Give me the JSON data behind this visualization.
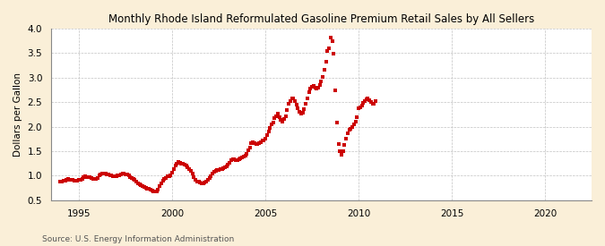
{
  "title": "Monthly Rhode Island Reformulated Gasoline Premium Retail Sales by All Sellers",
  "ylabel": "Dollars per Gallon",
  "source": "Source: U.S. Energy Information Administration",
  "background_color": "#faefd8",
  "plot_bg_color": "#ffffff",
  "line_color": "#cc0000",
  "marker": "s",
  "markersize": 2.2,
  "xlim": [
    1993.5,
    2022.5
  ],
  "ylim": [
    0.5,
    4.0
  ],
  "yticks": [
    0.5,
    1.0,
    1.5,
    2.0,
    2.5,
    3.0,
    3.5,
    4.0
  ],
  "xticks": [
    1995,
    2000,
    2005,
    2010,
    2015,
    2020
  ],
  "months_data": [
    [
      1994.0,
      0.88
    ],
    [
      1994.08,
      0.88
    ],
    [
      1994.17,
      0.89
    ],
    [
      1994.25,
      0.9
    ],
    [
      1994.33,
      0.92
    ],
    [
      1994.42,
      0.93
    ],
    [
      1994.5,
      0.92
    ],
    [
      1994.58,
      0.92
    ],
    [
      1994.67,
      0.91
    ],
    [
      1994.75,
      0.9
    ],
    [
      1994.83,
      0.9
    ],
    [
      1994.92,
      0.9
    ],
    [
      1995.0,
      0.91
    ],
    [
      1995.08,
      0.92
    ],
    [
      1995.17,
      0.94
    ],
    [
      1995.25,
      0.97
    ],
    [
      1995.33,
      0.98
    ],
    [
      1995.42,
      0.97
    ],
    [
      1995.5,
      0.97
    ],
    [
      1995.58,
      0.97
    ],
    [
      1995.67,
      0.95
    ],
    [
      1995.75,
      0.94
    ],
    [
      1995.83,
      0.94
    ],
    [
      1995.92,
      0.94
    ],
    [
      1996.0,
      0.96
    ],
    [
      1996.08,
      1.0
    ],
    [
      1996.17,
      1.02
    ],
    [
      1996.25,
      1.04
    ],
    [
      1996.33,
      1.05
    ],
    [
      1996.42,
      1.04
    ],
    [
      1996.5,
      1.03
    ],
    [
      1996.58,
      1.02
    ],
    [
      1996.67,
      1.01
    ],
    [
      1996.75,
      1.0
    ],
    [
      1996.83,
      0.99
    ],
    [
      1996.92,
      0.99
    ],
    [
      1997.0,
      0.99
    ],
    [
      1997.08,
      1.0
    ],
    [
      1997.17,
      1.01
    ],
    [
      1997.25,
      1.03
    ],
    [
      1997.33,
      1.04
    ],
    [
      1997.42,
      1.04
    ],
    [
      1997.5,
      1.03
    ],
    [
      1997.58,
      1.02
    ],
    [
      1997.67,
      1.0
    ],
    [
      1997.75,
      0.97
    ],
    [
      1997.83,
      0.96
    ],
    [
      1997.92,
      0.94
    ],
    [
      1998.0,
      0.91
    ],
    [
      1998.08,
      0.88
    ],
    [
      1998.17,
      0.85
    ],
    [
      1998.25,
      0.82
    ],
    [
      1998.33,
      0.8
    ],
    [
      1998.42,
      0.78
    ],
    [
      1998.5,
      0.77
    ],
    [
      1998.58,
      0.76
    ],
    [
      1998.67,
      0.74
    ],
    [
      1998.75,
      0.73
    ],
    [
      1998.83,
      0.71
    ],
    [
      1998.92,
      0.7
    ],
    [
      1999.0,
      0.68
    ],
    [
      1999.08,
      0.67
    ],
    [
      1999.17,
      0.68
    ],
    [
      1999.25,
      0.72
    ],
    [
      1999.33,
      0.78
    ],
    [
      1999.42,
      0.84
    ],
    [
      1999.5,
      0.89
    ],
    [
      1999.58,
      0.93
    ],
    [
      1999.67,
      0.96
    ],
    [
      1999.75,
      0.98
    ],
    [
      1999.83,
      0.99
    ],
    [
      1999.92,
      1.01
    ],
    [
      2000.0,
      1.06
    ],
    [
      2000.08,
      1.13
    ],
    [
      2000.17,
      1.2
    ],
    [
      2000.25,
      1.25
    ],
    [
      2000.33,
      1.28
    ],
    [
      2000.42,
      1.27
    ],
    [
      2000.5,
      1.25
    ],
    [
      2000.58,
      1.24
    ],
    [
      2000.67,
      1.22
    ],
    [
      2000.75,
      1.2
    ],
    [
      2000.83,
      1.17
    ],
    [
      2000.92,
      1.14
    ],
    [
      2001.0,
      1.1
    ],
    [
      2001.08,
      1.04
    ],
    [
      2001.17,
      0.97
    ],
    [
      2001.25,
      0.92
    ],
    [
      2001.33,
      0.88
    ],
    [
      2001.42,
      0.87
    ],
    [
      2001.5,
      0.86
    ],
    [
      2001.58,
      0.85
    ],
    [
      2001.67,
      0.84
    ],
    [
      2001.75,
      0.86
    ],
    [
      2001.83,
      0.88
    ],
    [
      2001.92,
      0.91
    ],
    [
      2002.0,
      0.95
    ],
    [
      2002.08,
      0.99
    ],
    [
      2002.17,
      1.04
    ],
    [
      2002.25,
      1.08
    ],
    [
      2002.33,
      1.1
    ],
    [
      2002.42,
      1.11
    ],
    [
      2002.5,
      1.12
    ],
    [
      2002.58,
      1.13
    ],
    [
      2002.67,
      1.14
    ],
    [
      2002.75,
      1.16
    ],
    [
      2002.83,
      1.17
    ],
    [
      2002.92,
      1.19
    ],
    [
      2003.0,
      1.22
    ],
    [
      2003.08,
      1.27
    ],
    [
      2003.17,
      1.32
    ],
    [
      2003.25,
      1.34
    ],
    [
      2003.33,
      1.33
    ],
    [
      2003.42,
      1.31
    ],
    [
      2003.5,
      1.32
    ],
    [
      2003.58,
      1.34
    ],
    [
      2003.67,
      1.36
    ],
    [
      2003.75,
      1.38
    ],
    [
      2003.83,
      1.39
    ],
    [
      2003.92,
      1.41
    ],
    [
      2004.0,
      1.44
    ],
    [
      2004.08,
      1.51
    ],
    [
      2004.17,
      1.58
    ],
    [
      2004.25,
      1.66
    ],
    [
      2004.33,
      1.69
    ],
    [
      2004.42,
      1.66
    ],
    [
      2004.5,
      1.64
    ],
    [
      2004.58,
      1.65
    ],
    [
      2004.67,
      1.67
    ],
    [
      2004.75,
      1.69
    ],
    [
      2004.83,
      1.71
    ],
    [
      2004.92,
      1.72
    ],
    [
      2005.0,
      1.76
    ],
    [
      2005.08,
      1.82
    ],
    [
      2005.17,
      1.9
    ],
    [
      2005.25,
      1.98
    ],
    [
      2005.33,
      2.04
    ],
    [
      2005.42,
      2.08
    ],
    [
      2005.5,
      2.17
    ],
    [
      2005.58,
      2.22
    ],
    [
      2005.67,
      2.26
    ],
    [
      2005.75,
      2.2
    ],
    [
      2005.83,
      2.14
    ],
    [
      2005.92,
      2.11
    ],
    [
      2006.0,
      2.16
    ],
    [
      2006.08,
      2.22
    ],
    [
      2006.17,
      2.33
    ],
    [
      2006.25,
      2.46
    ],
    [
      2006.33,
      2.53
    ],
    [
      2006.42,
      2.57
    ],
    [
      2006.5,
      2.58
    ],
    [
      2006.58,
      2.52
    ],
    [
      2006.67,
      2.44
    ],
    [
      2006.75,
      2.37
    ],
    [
      2006.83,
      2.31
    ],
    [
      2006.92,
      2.27
    ],
    [
      2007.0,
      2.28
    ],
    [
      2007.08,
      2.36
    ],
    [
      2007.17,
      2.47
    ],
    [
      2007.25,
      2.58
    ],
    [
      2007.33,
      2.7
    ],
    [
      2007.42,
      2.77
    ],
    [
      2007.5,
      2.81
    ],
    [
      2007.58,
      2.84
    ],
    [
      2007.67,
      2.8
    ],
    [
      2007.75,
      2.78
    ],
    [
      2007.83,
      2.8
    ],
    [
      2007.92,
      2.85
    ],
    [
      2008.0,
      2.92
    ],
    [
      2008.08,
      3.02
    ],
    [
      2008.17,
      3.16
    ],
    [
      2008.25,
      3.33
    ],
    [
      2008.33,
      3.54
    ],
    [
      2008.42,
      3.6
    ],
    [
      2008.5,
      3.82
    ],
    [
      2008.58,
      3.74
    ],
    [
      2008.67,
      3.48
    ],
    [
      2008.75,
      2.74
    ],
    [
      2008.83,
      2.08
    ],
    [
      2008.92,
      1.65
    ],
    [
      2009.0,
      1.5
    ],
    [
      2009.08,
      1.42
    ],
    [
      2009.17,
      1.5
    ],
    [
      2009.25,
      1.63
    ],
    [
      2009.33,
      1.76
    ],
    [
      2009.42,
      1.87
    ],
    [
      2009.5,
      1.93
    ],
    [
      2009.58,
      1.95
    ],
    [
      2009.67,
      1.99
    ],
    [
      2009.75,
      2.05
    ],
    [
      2009.83,
      2.1
    ],
    [
      2009.92,
      2.2
    ],
    [
      2010.0,
      2.37
    ],
    [
      2010.08,
      2.4
    ],
    [
      2010.17,
      2.43
    ],
    [
      2010.25,
      2.49
    ],
    [
      2010.33,
      2.53
    ],
    [
      2010.42,
      2.55
    ],
    [
      2010.5,
      2.57
    ],
    [
      2010.58,
      2.54
    ],
    [
      2010.67,
      2.5
    ],
    [
      2010.75,
      2.47
    ],
    [
      2010.83,
      2.46
    ],
    [
      2010.92,
      2.52
    ]
  ]
}
